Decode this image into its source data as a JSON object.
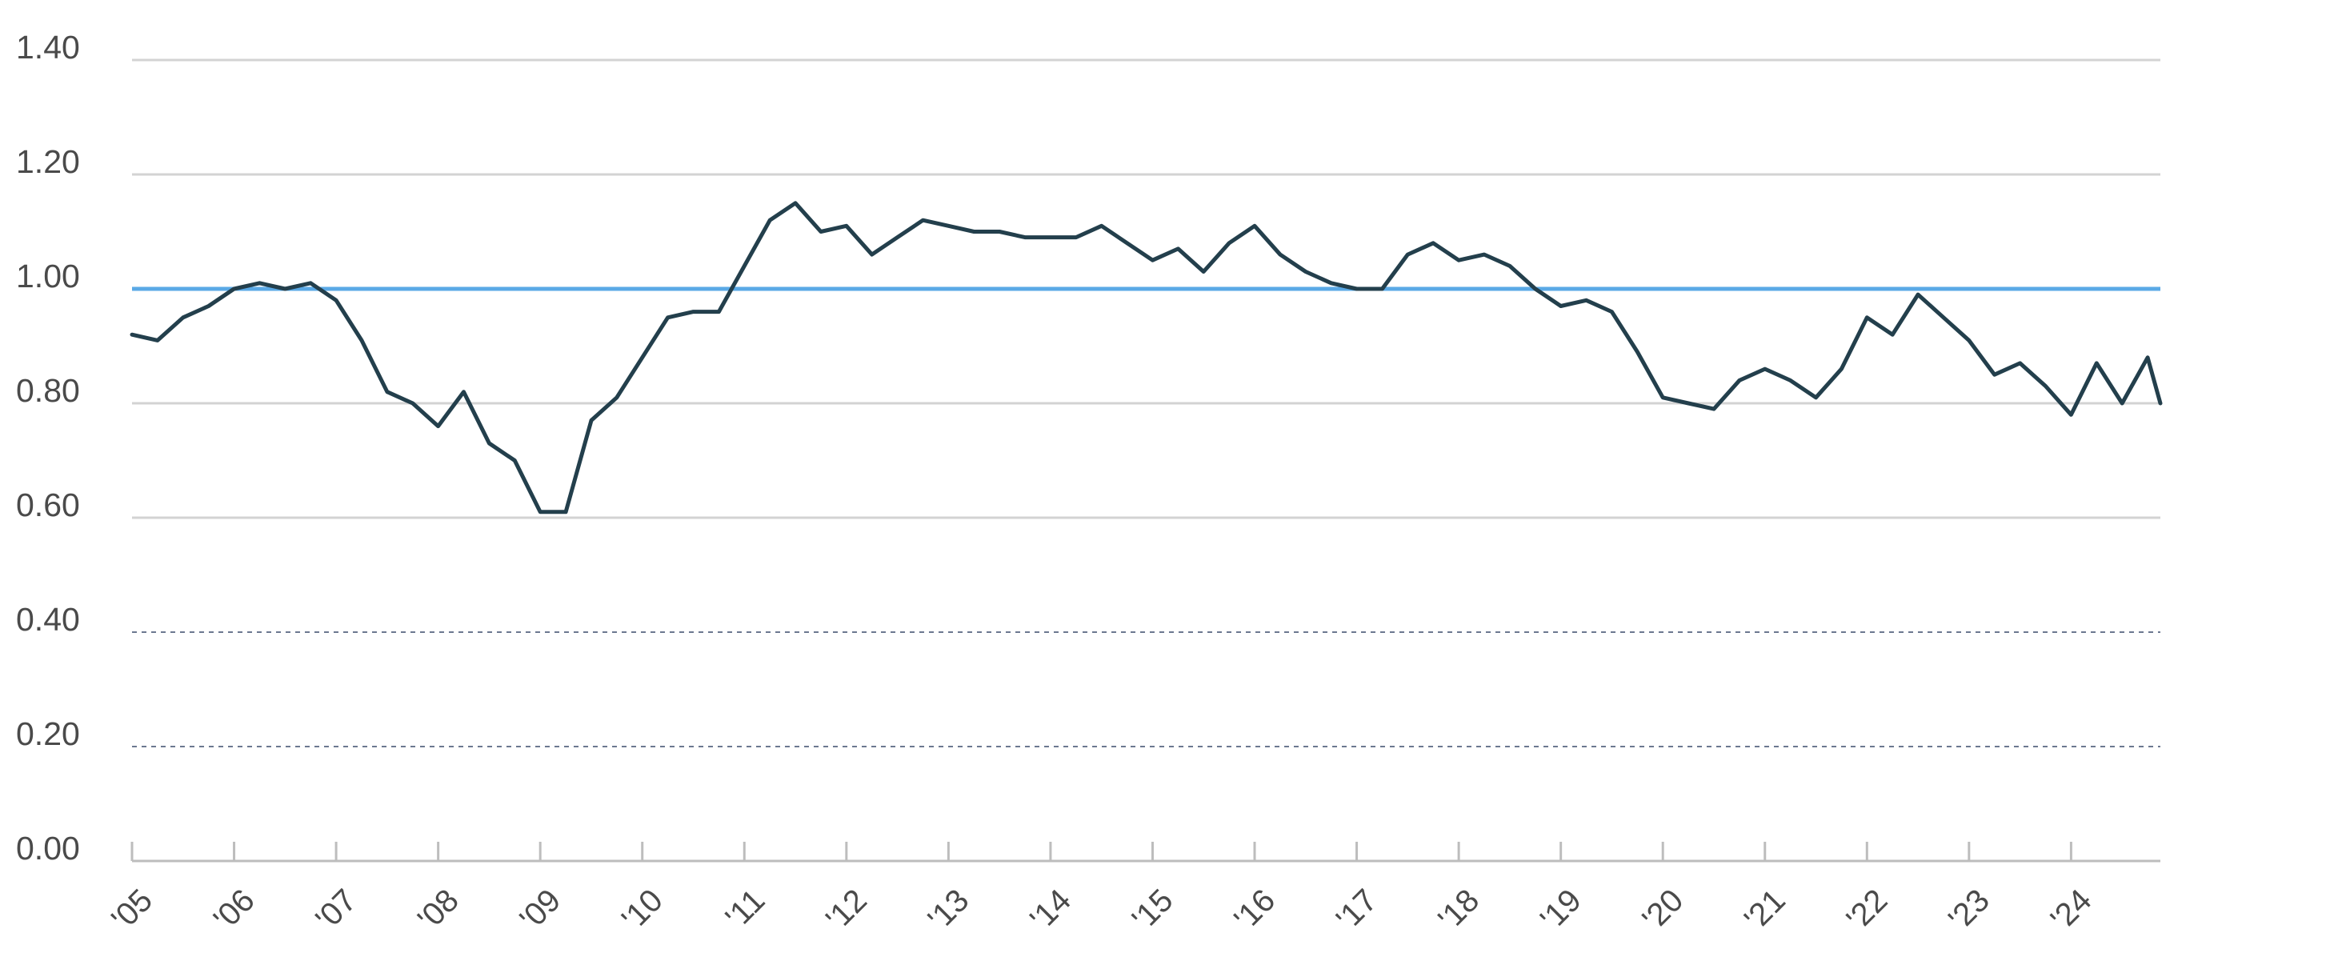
{
  "chart_data": {
    "type": "line",
    "title": "",
    "xlabel": "",
    "ylabel": "",
    "ylim": [
      0,
      1.4
    ],
    "y_ticks": [
      "0.00",
      "0.20",
      "0.40",
      "0.60",
      "0.80",
      "1.00",
      "1.20",
      "1.40"
    ],
    "x_ticks": [
      "'05",
      "'06",
      "'07",
      "'08",
      "'09",
      "'10",
      "'11",
      "'12",
      "'13",
      "'14",
      "'15",
      "'16",
      "'17",
      "'18",
      "'19",
      "'20",
      "'21",
      "'22",
      "'23",
      "'24"
    ],
    "xlim": [
      2005,
      2024.875
    ],
    "grid": "solid for 0.60 and above, dashed for 0.20 and 0.40",
    "reference_line": {
      "y": 1.0,
      "color": "#5aa9e6"
    },
    "series": [
      {
        "color": "#233f4c",
        "x": [
          2005,
          2005.25,
          2005.5,
          2005.75,
          2006,
          2006.25,
          2006.5,
          2006.75,
          2007,
          2007.25,
          2007.5,
          2007.75,
          2008,
          2008.25,
          2008.5,
          2008.75,
          2009,
          2009.25,
          2009.5,
          2009.75,
          2010,
          2010.25,
          2010.5,
          2010.75,
          2011,
          2011.25,
          2011.5,
          2011.75,
          2012,
          2012.25,
          2012.5,
          2012.75,
          2013,
          2013.25,
          2013.5,
          2013.75,
          2014,
          2014.25,
          2014.5,
          2014.75,
          2015,
          2015.25,
          2015.5,
          2015.75,
          2016,
          2016.25,
          2016.5,
          2016.75,
          2017,
          2017.25,
          2017.5,
          2017.75,
          2018,
          2018.25,
          2018.5,
          2018.75,
          2019,
          2019.25,
          2019.5,
          2019.75,
          2020,
          2020.25,
          2020.5,
          2020.75,
          2021,
          2021.25,
          2021.5,
          2021.75,
          2022,
          2022.25,
          2022.5,
          2022.75,
          2023,
          2023.25,
          2023.5,
          2023.75,
          2024,
          2024.25,
          2024.5,
          2024.75,
          2024.875
        ],
        "values": [
          0.92,
          0.91,
          0.95,
          0.97,
          1.0,
          1.01,
          1.0,
          1.01,
          0.98,
          0.91,
          0.82,
          0.8,
          0.76,
          0.82,
          0.73,
          0.7,
          0.61,
          0.61,
          0.77,
          0.81,
          0.88,
          0.95,
          0.96,
          0.96,
          1.04,
          1.12,
          1.15,
          1.1,
          1.11,
          1.06,
          1.09,
          1.12,
          1.11,
          1.1,
          1.1,
          1.09,
          1.09,
          1.09,
          1.11,
          1.08,
          1.05,
          1.07,
          1.03,
          1.08,
          1.11,
          1.06,
          1.03,
          1.01,
          1.0,
          1.0,
          1.06,
          1.08,
          1.05,
          1.06,
          1.04,
          1.0,
          0.97,
          0.98,
          0.96,
          0.89,
          0.81,
          0.8,
          0.79,
          0.84,
          0.86,
          0.84,
          0.81,
          0.86,
          0.95,
          0.92,
          0.99,
          0.95,
          0.91,
          0.85,
          0.87,
          0.83,
          0.78,
          0.87,
          0.8,
          0.88,
          0.8
        ]
      }
    ]
  }
}
